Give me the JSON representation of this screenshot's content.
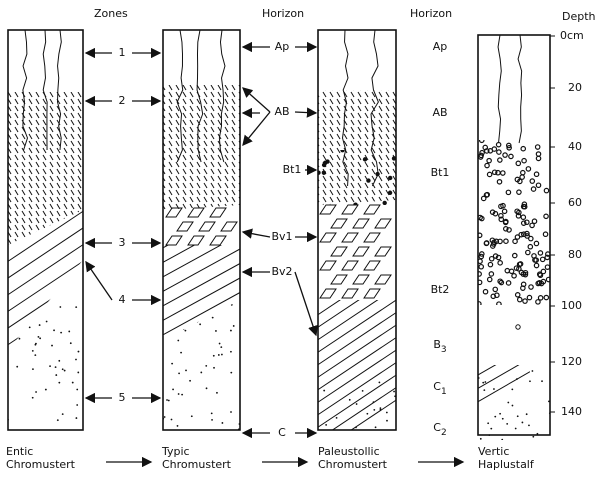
{
  "headers": {
    "zones": "Zones",
    "horizon_left": "Horizon",
    "horizon_right": "Horizon",
    "depth": "Depth"
  },
  "zones": [
    "1",
    "2",
    "3",
    "4",
    "5"
  ],
  "horizons_left": [
    "Ap",
    "AB",
    "Bt1",
    "Bv1",
    "Bv2",
    "C"
  ],
  "horizons_right": [
    {
      "base": "Ap"
    },
    {
      "base": "AB"
    },
    {
      "base": "Bt1"
    },
    {
      "base": "Bt2"
    },
    {
      "base": "B",
      "sub": "3"
    },
    {
      "base": "C",
      "sub": "1"
    },
    {
      "base": "C",
      "sub": "2"
    }
  ],
  "depth_labels": [
    "0cm",
    "20",
    "40",
    "60",
    "80",
    "100",
    "120",
    "140"
  ],
  "profiles": [
    [
      "Entic",
      "Chromustert"
    ],
    [
      "Typic",
      "Chromustert"
    ],
    [
      "Paleustollic",
      "Chromustert"
    ],
    [
      "Vertic",
      "Haplustalf"
    ]
  ]
}
